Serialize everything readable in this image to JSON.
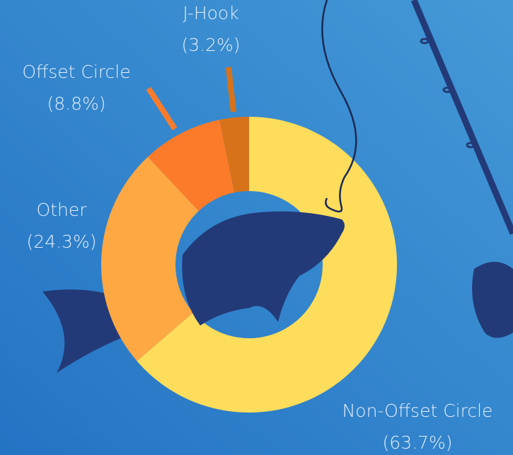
{
  "chart_data": {
    "type": "donut",
    "categories": [
      "Non-Offset Circle",
      "Other",
      "Offset Circle",
      "J-Hook"
    ],
    "values": [
      63.7,
      24.3,
      8.8,
      3.2
    ],
    "value_labels": [
      "(63.7%)",
      "(24.3%)",
      "(8.8%)",
      "(3.2%)"
    ],
    "colors": [
      "#fedd5c",
      "#fda843",
      "#fc7b2a",
      "#d6731a"
    ]
  }
}
